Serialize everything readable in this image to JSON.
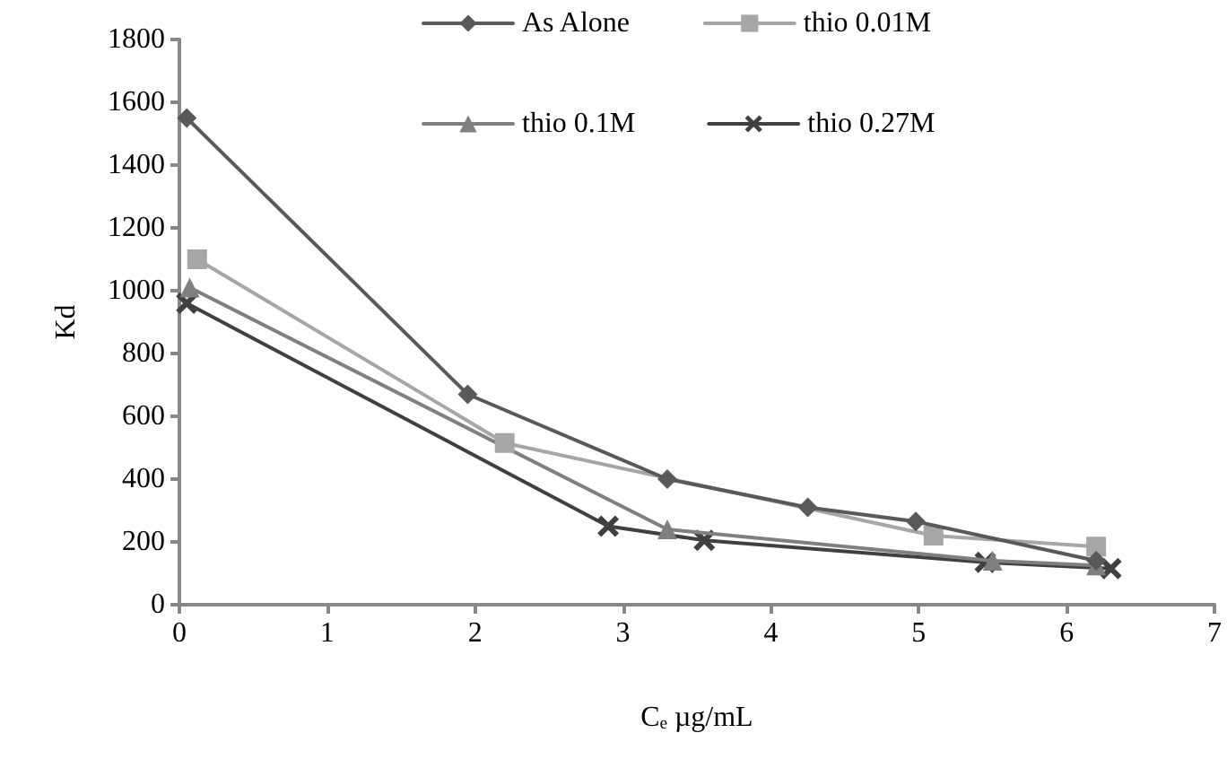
{
  "chart_data": {
    "type": "line",
    "xlabel": "Cₑ µg/mL",
    "ylabel": "Kd",
    "xlim": [
      0,
      7
    ],
    "xticks": [
      0,
      1,
      2,
      3,
      4,
      5,
      6,
      7
    ],
    "ylim": [
      0,
      1800
    ],
    "yticks": [
      0,
      200,
      400,
      600,
      800,
      1000,
      1200,
      1400,
      1600,
      1800
    ],
    "grid": false,
    "legend": "top",
    "series": [
      {
        "name": "As Alone",
        "color": "#595959",
        "marker": "diamond",
        "x": [
          0.05,
          1.95,
          3.3,
          4.25,
          4.98,
          6.2
        ],
        "values": [
          1550,
          670,
          400,
          310,
          265,
          140
        ]
      },
      {
        "name": "thio 0.01M",
        "color": "#a6a6a6",
        "marker": "square",
        "x": [
          0.12,
          2.2,
          5.1,
          6.2
        ],
        "values": [
          1100,
          515,
          220,
          185
        ]
      },
      {
        "name": "thio 0.1M",
        "color": "#7f7f7f",
        "marker": "triangle",
        "x": [
          0.07,
          3.3,
          5.5,
          6.2
        ],
        "values": [
          1010,
          240,
          140,
          125
        ]
      },
      {
        "name": "thio 0.27M",
        "color": "#404040",
        "marker": "cross",
        "x": [
          0.05,
          2.9,
          3.55,
          5.45,
          6.3
        ],
        "values": [
          960,
          250,
          205,
          135,
          115
        ]
      }
    ]
  }
}
